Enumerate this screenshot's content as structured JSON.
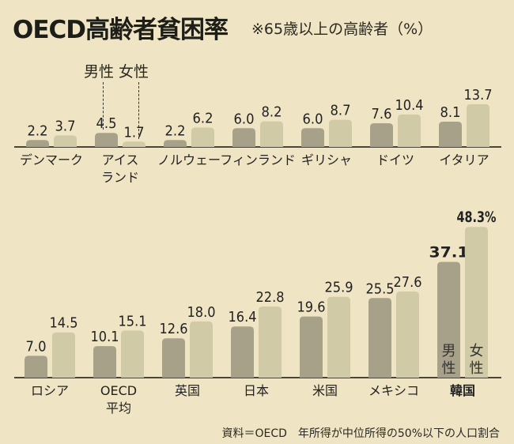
{
  "title": "OECD高齢者貧困率",
  "subtitle": "※65歳以上の高齢者（%）",
  "legend": {
    "male": "男性",
    "female": "女性"
  },
  "footer": "資料＝OECD　年所得が中位所得の50%以下の人口割合",
  "colors": {
    "male": "#a8a189",
    "female": "#d1caa7",
    "background": "#efe4c4"
  },
  "chart_data": [
    {
      "type": "bar",
      "title": "OECD高齢者貧困率",
      "ylabel": "%",
      "categories": [
        "デンマーク",
        "アイス\nランド",
        "ノルウェー",
        "フィンランド",
        "ギリシャ",
        "ドイツ",
        "イタリア"
      ],
      "series": [
        {
          "name": "男性",
          "values": [
            2.2,
            4.5,
            2.2,
            6.0,
            6.0,
            7.6,
            8.1
          ],
          "labels": [
            "2.2",
            "4.5",
            "2.2",
            "6.0",
            "6.0",
            "7.6",
            "8.1"
          ]
        },
        {
          "name": "女性",
          "values": [
            3.7,
            1.7,
            6.2,
            8.2,
            8.7,
            10.4,
            13.7
          ],
          "labels": [
            "3.7",
            "1.7",
            "6.2",
            "8.2",
            "8.7",
            "10.4",
            "13.7"
          ]
        }
      ]
    },
    {
      "type": "bar",
      "categories": [
        "ロシア",
        "OECD\n平均",
        "英国",
        "日本",
        "米国",
        "メキシコ",
        "韓国"
      ],
      "highlight": "韓国",
      "series": [
        {
          "name": "男性",
          "values": [
            7.0,
            10.1,
            12.6,
            16.4,
            19.6,
            25.5,
            37.1
          ],
          "labels": [
            "7.0",
            "10.1",
            "12.6",
            "16.4",
            "19.6",
            "25.5",
            "37.1"
          ]
        },
        {
          "name": "女性",
          "values": [
            14.5,
            15.1,
            18.0,
            22.8,
            25.9,
            27.6,
            48.3
          ],
          "labels": [
            "14.5",
            "15.1",
            "18.0",
            "22.8",
            "25.9",
            "27.6",
            "48.3%"
          ]
        }
      ],
      "in_bar_labels": {
        "male": "男\n性",
        "female": "女\n性"
      }
    }
  ]
}
